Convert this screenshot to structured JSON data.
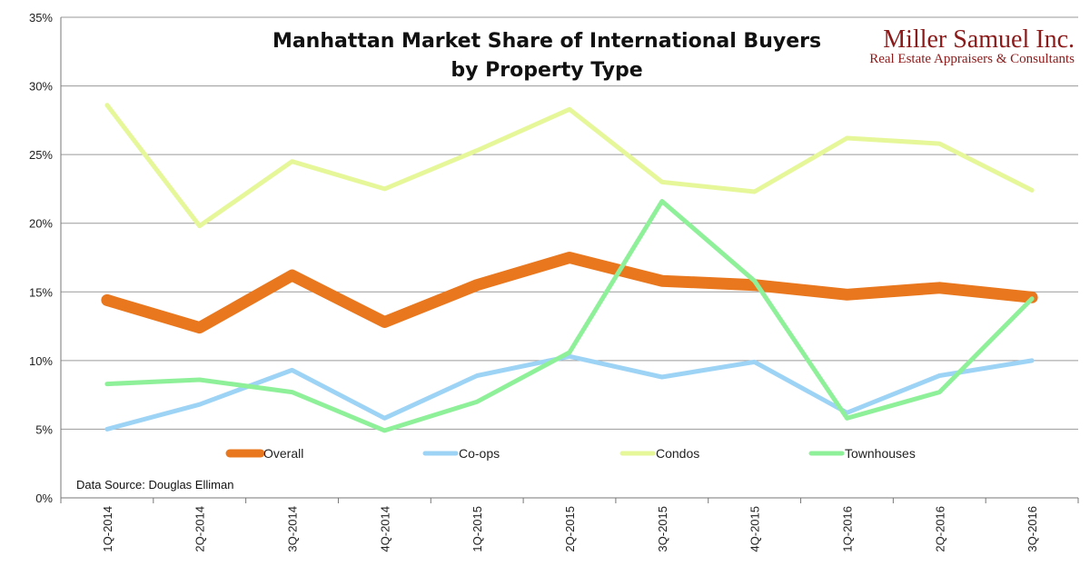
{
  "chart_data": {
    "type": "line",
    "title": "Manhattan Market Share of International Buyers",
    "subtitle": "by Property Type",
    "categories": [
      "1Q-2014",
      "2Q-2014",
      "3Q-2014",
      "4Q-2014",
      "1Q-2015",
      "2Q-2015",
      "3Q-2015",
      "4Q-2015",
      "1Q-2016",
      "2Q-2016",
      "3Q-2016"
    ],
    "ylim": [
      0,
      35
    ],
    "yticks": [
      0,
      5,
      10,
      15,
      20,
      25,
      30,
      35
    ],
    "ytick_labels": [
      "0%",
      "5%",
      "10%",
      "15%",
      "20%",
      "25%",
      "30%",
      "35%"
    ],
    "grid": true,
    "legend_position": "bottom-inside",
    "series": [
      {
        "name": "Overall",
        "color": "#E8771E",
        "values": [
          14.4,
          12.4,
          16.2,
          12.8,
          15.5,
          17.5,
          15.8,
          15.5,
          14.8,
          15.3,
          14.6
        ]
      },
      {
        "name": "Co-ops",
        "color": "#9DD3F5",
        "values": [
          5.0,
          6.8,
          9.3,
          5.8,
          8.9,
          10.3,
          8.8,
          9.9,
          6.2,
          8.9,
          10.0
        ]
      },
      {
        "name": "Condos",
        "color": "#E6F79A",
        "values": [
          28.6,
          19.8,
          24.5,
          22.5,
          25.3,
          28.3,
          23.0,
          22.3,
          26.2,
          25.8,
          22.4
        ]
      },
      {
        "name": "Townhouses",
        "color": "#8FF09A",
        "values": [
          8.3,
          8.6,
          7.7,
          4.9,
          7.0,
          10.6,
          21.6,
          15.8,
          5.8,
          7.7,
          14.5
        ]
      }
    ],
    "annotation": "Data Source: Douglas Elliman"
  },
  "brand": {
    "name": "Miller Samuel Inc.",
    "tagline": "Real Estate Appraisers & Consultants",
    "color": "#8B1A1A"
  }
}
